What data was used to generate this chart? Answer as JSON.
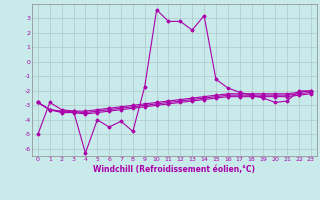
{
  "background_color": "#c8eaea",
  "grid_color": "#b0c8c8",
  "line_color": "#aa00aa",
  "x_values": [
    0,
    1,
    2,
    3,
    4,
    5,
    6,
    7,
    8,
    9,
    10,
    11,
    12,
    13,
    14,
    15,
    16,
    17,
    18,
    19,
    20,
    21,
    22,
    23
  ],
  "line1_y": [
    -5.0,
    -2.8,
    -3.3,
    -3.4,
    -6.3,
    -4.0,
    -4.5,
    -4.1,
    -4.8,
    -1.7,
    3.6,
    2.8,
    2.8,
    2.2,
    3.2,
    -1.2,
    -1.8,
    -2.1,
    -2.3,
    -2.5,
    -2.8,
    -2.7,
    -2.0,
    -2.0
  ],
  "line2_y": [
    -2.8,
    -3.3,
    -3.4,
    -3.4,
    -3.4,
    -3.3,
    -3.2,
    -3.1,
    -3.0,
    -2.9,
    -2.8,
    -2.7,
    -2.6,
    -2.5,
    -2.4,
    -2.3,
    -2.2,
    -2.2,
    -2.2,
    -2.2,
    -2.2,
    -2.2,
    -2.1,
    -2.0
  ],
  "line3_y": [
    -2.8,
    -3.3,
    -3.45,
    -3.45,
    -3.5,
    -3.4,
    -3.3,
    -3.2,
    -3.1,
    -3.0,
    -2.9,
    -2.8,
    -2.7,
    -2.6,
    -2.5,
    -2.4,
    -2.3,
    -2.3,
    -2.3,
    -2.3,
    -2.3,
    -2.3,
    -2.2,
    -2.1
  ],
  "line4_y": [
    -2.8,
    -3.3,
    -3.5,
    -3.5,
    -3.6,
    -3.5,
    -3.4,
    -3.3,
    -3.2,
    -3.1,
    -3.0,
    -2.9,
    -2.8,
    -2.7,
    -2.6,
    -2.5,
    -2.4,
    -2.4,
    -2.4,
    -2.4,
    -2.4,
    -2.4,
    -2.3,
    -2.2
  ],
  "ylim": [
    -6.5,
    4.0
  ],
  "xlim": [
    -0.5,
    23.5
  ],
  "yticks": [
    -6,
    -5,
    -4,
    -3,
    -2,
    -1,
    0,
    1,
    2,
    3
  ],
  "xticks": [
    0,
    1,
    2,
    3,
    4,
    5,
    6,
    7,
    8,
    9,
    10,
    11,
    12,
    13,
    14,
    15,
    16,
    17,
    18,
    19,
    20,
    21,
    22,
    23
  ],
  "xlabel": "Windchill (Refroidissement éolien,°C)",
  "xlabel_fontsize": 5.5,
  "tick_fontsize": 4.5,
  "figwidth": 3.2,
  "figheight": 2.0,
  "dpi": 100
}
